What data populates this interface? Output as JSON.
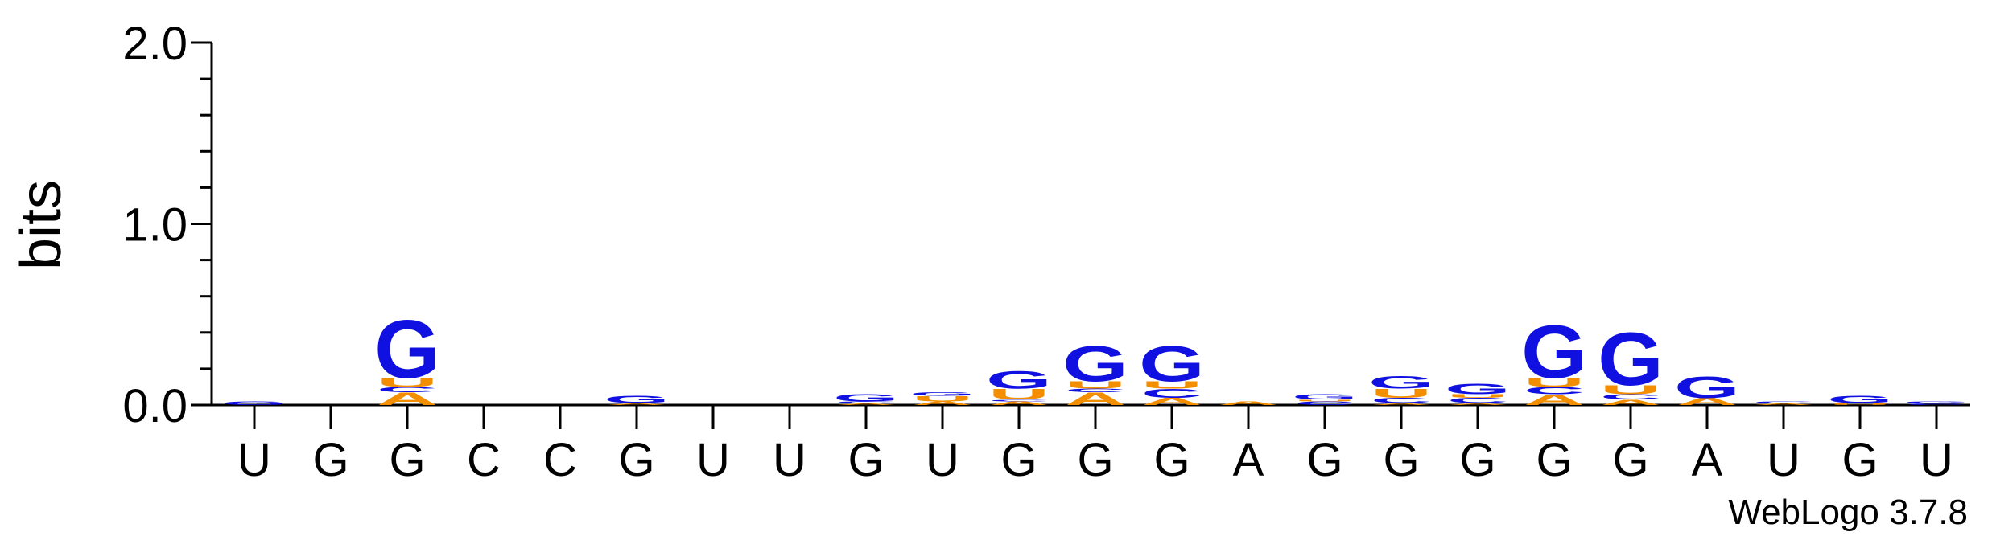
{
  "chart_data": {
    "type": "logo",
    "ylabel": "bits",
    "footer": "WebLogo 3.7.8",
    "categories": [
      "U",
      "G",
      "G",
      "C",
      "C",
      "G",
      "U",
      "U",
      "G",
      "U",
      "G",
      "G",
      "G",
      "A",
      "G",
      "G",
      "G",
      "G",
      "G",
      "A",
      "U",
      "G",
      "U"
    ],
    "series": [
      {
        "name": "A",
        "color": "#f28e00",
        "values": [
          0,
          0,
          0.07,
          0,
          0,
          0.01,
          0,
          0,
          0.01,
          0.02,
          0.02,
          0.07,
          0.04,
          0.02,
          0,
          0.01,
          0.01,
          0.06,
          0.03,
          0.04,
          0.01,
          0,
          0
        ]
      },
      {
        "name": "C",
        "color": "#1010e0",
        "values": [
          0,
          0,
          0.03,
          0,
          0,
          0,
          0,
          0,
          0.01,
          0,
          0.01,
          0.02,
          0.05,
          0,
          0.02,
          0.03,
          0.03,
          0.04,
          0.03,
          0,
          0.01,
          0,
          0.01
        ]
      },
      {
        "name": "U",
        "color": "#f28e00",
        "values": [
          0,
          0,
          0.05,
          0,
          0,
          0,
          0,
          0,
          0,
          0.03,
          0.06,
          0.04,
          0.04,
          0,
          0.01,
          0.05,
          0.02,
          0.05,
          0.05,
          0,
          0,
          0.01,
          0
        ]
      },
      {
        "name": "G",
        "color": "#1010e0",
        "values": [
          0.02,
          0,
          0.33,
          0,
          0,
          0.04,
          0,
          0,
          0.04,
          0.02,
          0.1,
          0.2,
          0.2,
          0,
          0.03,
          0.07,
          0.06,
          0.3,
          0.3,
          0.12,
          0,
          0.04,
          0.01
        ]
      }
    ],
    "ylim": [
      0,
      2
    ],
    "yticks": [
      {
        "value": 0,
        "label": "0.0"
      },
      {
        "value": 1,
        "label": "1.0"
      },
      {
        "value": 2,
        "label": "2.0"
      }
    ],
    "yminorticks": [
      0.2,
      0.4,
      0.6,
      0.8,
      1.2,
      1.4,
      1.6,
      1.8
    ]
  }
}
